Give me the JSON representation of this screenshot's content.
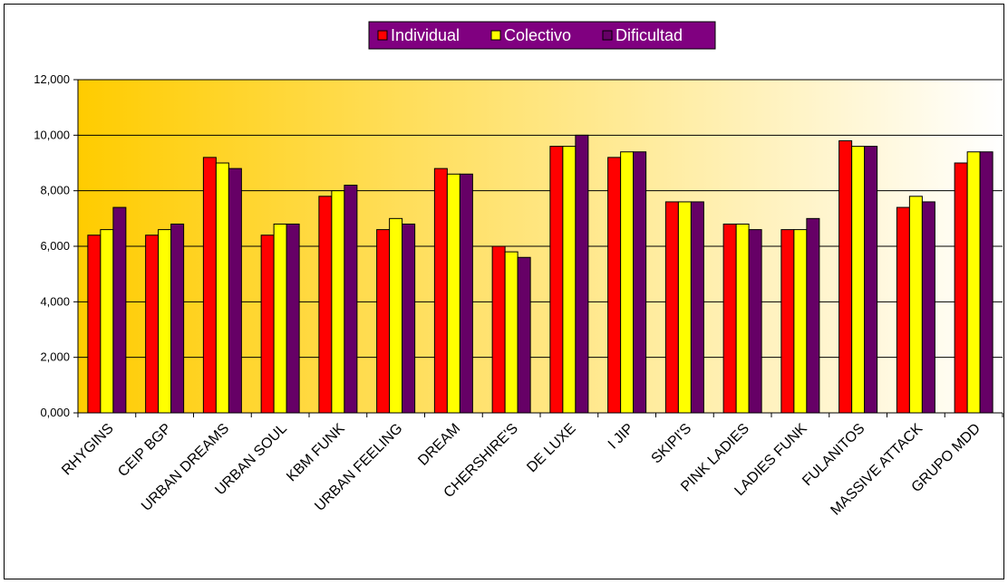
{
  "chart_data": {
    "type": "bar",
    "categories": [
      "RHYGINS",
      "CEIP BGP",
      "URBAN DREAMS",
      "URBAN SOUL",
      "KBM FUNK",
      "URBAN FEELING",
      "DREAM",
      "CHERSHIRE'S",
      "DE LUXE",
      "I JIP",
      "SKIPI'S",
      "PINK LADIES",
      "LADIES FUNK",
      "FULANITOS",
      "MASSIVE ATTACK",
      "GRUPO MDD"
    ],
    "series": [
      {
        "name": "Individual",
        "color": "#ff0000",
        "values": [
          6.4,
          6.4,
          9.2,
          6.4,
          7.8,
          6.6,
          8.8,
          6.0,
          9.6,
          9.2,
          7.6,
          6.8,
          6.6,
          9.8,
          7.4,
          9.0
        ]
      },
      {
        "name": "Colectivo",
        "color": "#ffff00",
        "values": [
          6.6,
          6.6,
          9.0,
          6.8,
          8.0,
          7.0,
          8.6,
          5.8,
          9.6,
          9.4,
          7.6,
          6.8,
          6.6,
          9.6,
          7.8,
          9.4
        ]
      },
      {
        "name": "Dificultad",
        "color": "#660066",
        "values": [
          7.4,
          6.8,
          8.8,
          6.8,
          8.2,
          6.8,
          8.6,
          5.6,
          10.0,
          9.4,
          7.6,
          6.6,
          7.0,
          9.6,
          7.6,
          9.4
        ]
      }
    ],
    "yticks": [
      "0,000",
      "2,000",
      "4,000",
      "6,000",
      "8,000",
      "10,000",
      "12,000"
    ],
    "ylim": [
      0,
      12
    ],
    "grid": true,
    "legend_position": "top-center",
    "legend_background": "#800080",
    "plot_gradient": [
      "#ffcc00",
      "#ffffff"
    ]
  }
}
